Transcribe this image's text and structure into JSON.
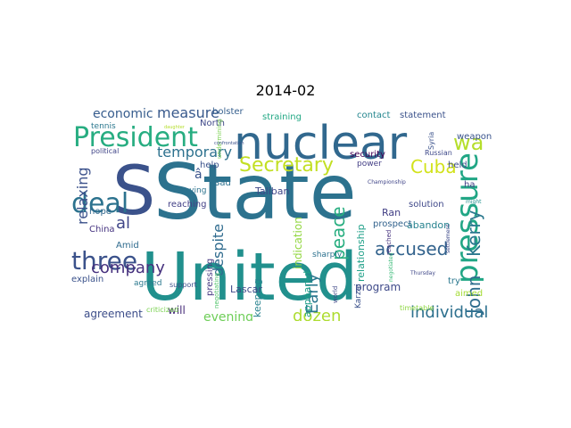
{
  "title": "2014-02",
  "words": [
    {
      "text": "State",
      "color": "#2c728e"
    },
    {
      "text": "United",
      "color": "#21908d"
    },
    {
      "text": "nuclear",
      "color": "#31688e"
    },
    {
      "text": "S",
      "color": "#3b528b"
    },
    {
      "text": "pressure",
      "color": "#21a685"
    },
    {
      "text": "President",
      "color": "#27ad81"
    },
    {
      "text": "deal",
      "color": "#2c728e"
    },
    {
      "text": "three",
      "color": "#3b528b"
    },
    {
      "text": "Secretary",
      "color": "#c2df23"
    },
    {
      "text": "John",
      "color": "#2e6d8e"
    },
    {
      "text": "Kerry",
      "color": "#2a788e"
    },
    {
      "text": "wa",
      "color": "#b5de2b"
    },
    {
      "text": "Cuba",
      "color": "#d2e21b"
    },
    {
      "text": "accused",
      "color": "#33638d"
    },
    {
      "text": "dozen",
      "color": "#addc30"
    },
    {
      "text": "individual",
      "color": "#2d708e"
    },
    {
      "text": "company",
      "color": "#46317e"
    },
    {
      "text": "peace",
      "color": "#28ae80"
    },
    {
      "text": "Early",
      "color": "#2a768e"
    },
    {
      "text": "al",
      "color": "#404688"
    },
    {
      "text": "relaxing",
      "color": "#3b518b"
    },
    {
      "text": "despite",
      "color": "#2f6b8e"
    },
    {
      "text": "temporary",
      "color": "#2d718e"
    },
    {
      "text": "measure",
      "color": "#38598c"
    },
    {
      "text": "economic",
      "color": "#365c8d"
    },
    {
      "text": "evening",
      "color": "#6ece58"
    },
    {
      "text": "program",
      "color": "#3e4a89"
    },
    {
      "text": "agreement",
      "color": "#3d4e8a"
    },
    {
      "text": "will",
      "color": "#472c7a"
    },
    {
      "text": "indication",
      "color": "#93d741"
    },
    {
      "text": "appeared",
      "color": "#1f9f88"
    },
    {
      "text": "keeping",
      "color": "#26828e"
    },
    {
      "text": "Lascar",
      "color": "#3e4989"
    },
    {
      "text": "Ran",
      "color": "#423f85"
    },
    {
      "text": "abandon",
      "color": "#26828e"
    },
    {
      "text": "relationship",
      "color": "#1fa088"
    },
    {
      "text": "security",
      "color": "#440154"
    },
    {
      "text": "Taliban",
      "color": "#3f4788"
    },
    {
      "text": "contact",
      "color": "#24868e"
    },
    {
      "text": "statement",
      "color": "#3b528b"
    },
    {
      "text": "weapon",
      "color": "#3a548c"
    },
    {
      "text": "straining",
      "color": "#22a884"
    },
    {
      "text": "bolster",
      "color": "#355f8d"
    },
    {
      "text": "tennis",
      "color": "#2a778e"
    },
    {
      "text": "North",
      "color": "#3f4889"
    },
    {
      "text": "help",
      "color": "#3b528b"
    },
    {
      "text": "Sad",
      "color": "#2d718e"
    },
    {
      "text": "reaching",
      "color": "#424086"
    },
    {
      "text": "hope",
      "color": "#31688e"
    },
    {
      "text": "Amid",
      "color": "#2f6b8e"
    },
    {
      "text": "China",
      "color": "#463480"
    },
    {
      "text": "explain",
      "color": "#3b528b"
    },
    {
      "text": "agreed",
      "color": "#2a788e"
    },
    {
      "text": "pressing",
      "color": "#453781"
    },
    {
      "text": "held",
      "color": "#3e4c8a"
    },
    {
      "text": "ha",
      "color": "#424086"
    },
    {
      "text": "try",
      "color": "#2a778e"
    },
    {
      "text": "aimed",
      "color": "#a5db36"
    },
    {
      "text": "solution",
      "color": "#3f4889"
    },
    {
      "text": "prospect",
      "color": "#33638d"
    },
    {
      "text": "power",
      "color": "#433e85"
    },
    {
      "text": "saying",
      "color": "#2c738e"
    },
    {
      "text": "political",
      "color": "#404588"
    },
    {
      "text": "support",
      "color": "#3c4f8a"
    },
    {
      "text": "sharply",
      "color": "#2c718e"
    },
    {
      "text": "Karzai",
      "color": "#3b518b"
    },
    {
      "text": "Russian",
      "color": "#3e4989"
    },
    {
      "text": "â",
      "color": "#3a548c"
    },
    {
      "text": "criticized",
      "color": "#7ad151"
    },
    {
      "text": "negotiating",
      "color": "#50c46a"
    },
    {
      "text": "timetable",
      "color": "#8fd744"
    },
    {
      "text": "Syria",
      "color": "#3b528b"
    },
    {
      "text": "negotiated",
      "color": "#38b977"
    },
    {
      "text": "settlement",
      "color": "#3e4a89"
    },
    {
      "text": "reached",
      "color": "#46327e"
    },
    {
      "text": "world",
      "color": "#3f4889"
    },
    {
      "text": "Championship",
      "color": "#404588"
    },
    {
      "text": "undermining",
      "color": "#7ad151"
    },
    {
      "text": "might",
      "color": "#21918c"
    },
    {
      "text": "Thursday",
      "color": "#3f4788"
    },
    {
      "text": "confrontation",
      "color": "#3b528b"
    },
    {
      "text": "daughter",
      "color": "#b5de2b"
    }
  ]
}
